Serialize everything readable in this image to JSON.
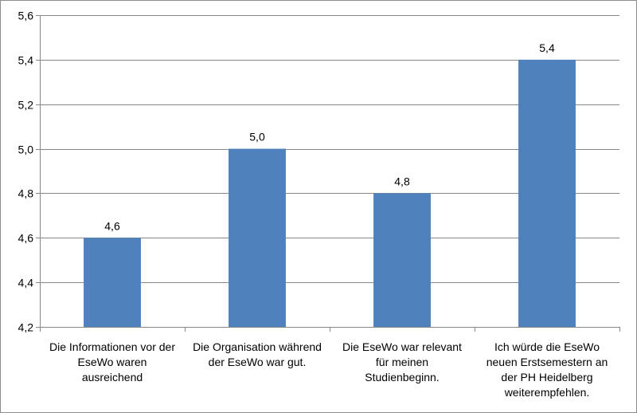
{
  "chart_data": {
    "type": "bar",
    "categories": [
      [
        "Die Informationen vor der",
        "EseWo waren",
        "ausreichend"
      ],
      [
        "Die Organisation während",
        "der EseWo war gut."
      ],
      [
        "Die EseWo war relevant",
        "für meinen",
        "Studienbeginn."
      ],
      [
        "Ich würde die EseWo",
        "neuen Erstsemestern an",
        "der PH Heidelberg",
        "weiterempfehlen."
      ]
    ],
    "values": [
      4.6,
      5.0,
      4.8,
      5.4
    ],
    "data_labels": [
      "4,6",
      "5,0",
      "4,8",
      "5,4"
    ],
    "y_ticks": [
      4.2,
      4.4,
      4.6,
      4.8,
      5.0,
      5.2,
      5.4,
      5.6
    ],
    "y_tick_labels": [
      "4,2",
      "4,4",
      "4,6",
      "4,8",
      "5,0",
      "5,2",
      "5,4",
      "5,6"
    ],
    "ylim": [
      4.2,
      5.6
    ],
    "grid": true,
    "legend": false,
    "bar_color": "#4f81bd",
    "grid_color": "#878787",
    "title": "",
    "xlabel": "",
    "ylabel": ""
  }
}
